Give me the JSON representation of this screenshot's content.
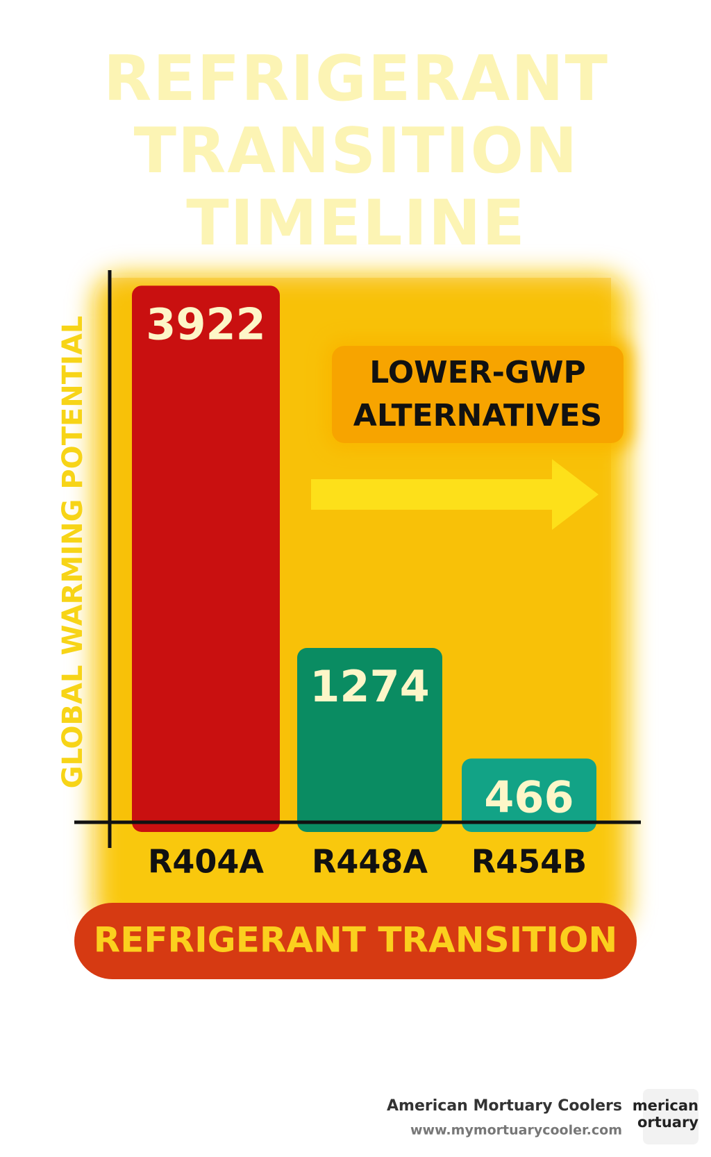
{
  "chart_data": {
    "type": "bar",
    "title": "REFRIGERANT TRANSITION TIMELINE",
    "annotation": "LOWER-GWP ALTERNATIVES",
    "x_label": "REFRIGERANT TRANSITION",
    "y_label": "GLOBAL WARMING POTENTIAL",
    "categories": [
      "R404A",
      "R448A",
      "R454B"
    ],
    "values": [
      3922,
      1274,
      466
    ],
    "colors": [
      "#c91010",
      "#0a8c62",
      "#12a386"
    ],
    "ylim": [
      0,
      4000
    ]
  },
  "footer": {
    "company": "American Mortuary Coolers",
    "url": "www.mymortuarycooler.com",
    "logo": [
      "merican",
      "ortuary"
    ]
  }
}
